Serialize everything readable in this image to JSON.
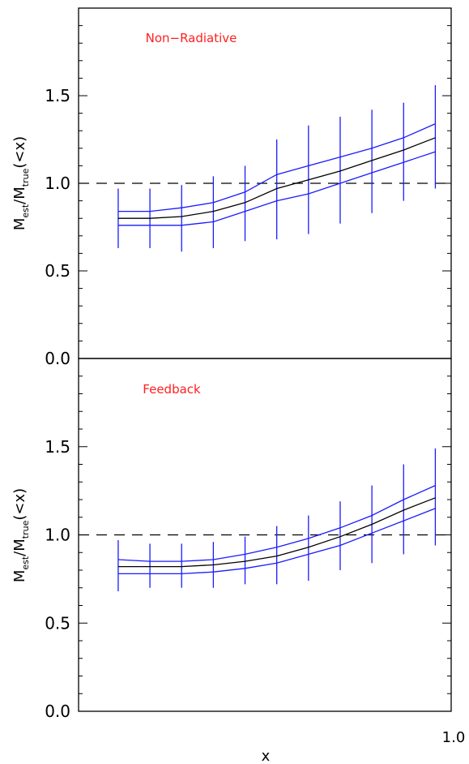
{
  "chart_data": [
    {
      "type": "line",
      "annotation": "Non−Radiative",
      "ylabel_main": "M",
      "ylabel_sub_num": "est",
      "ylabel_sub_den": "true",
      "ylabel_slash": "/",
      "ylabel_tail": "(<x)",
      "ylim": [
        0.0,
        2.0
      ],
      "yticks": [
        "0.0",
        "0.5",
        "1.0",
        "1.5"
      ],
      "reference_line": 1.0,
      "x": [
        0.18,
        0.26,
        0.34,
        0.42,
        0.5,
        0.58,
        0.66,
        0.74,
        0.82,
        0.9,
        0.98
      ],
      "median": [
        0.8,
        0.8,
        0.81,
        0.84,
        0.89,
        0.97,
        1.02,
        1.07,
        1.13,
        1.19,
        1.26
      ],
      "band_upper": [
        0.84,
        0.84,
        0.86,
        0.89,
        0.95,
        1.05,
        1.1,
        1.15,
        1.2,
        1.26,
        1.34
      ],
      "band_lower": [
        0.76,
        0.76,
        0.76,
        0.78,
        0.84,
        0.9,
        0.94,
        1.0,
        1.06,
        1.12,
        1.18
      ],
      "error_upper": [
        0.97,
        0.97,
        0.99,
        1.04,
        1.1,
        1.25,
        1.33,
        1.38,
        1.42,
        1.46,
        1.56
      ],
      "error_lower": [
        0.63,
        0.63,
        0.61,
        0.63,
        0.67,
        0.68,
        0.71,
        0.77,
        0.83,
        0.9,
        0.97
      ]
    },
    {
      "type": "line",
      "annotation": "Feedback",
      "ylabel_main": "M",
      "ylabel_sub_num": "est",
      "ylabel_sub_den": "true",
      "ylabel_slash": "/",
      "ylabel_tail": "(<x)",
      "xlabel": "x",
      "xtick_max": "1.0",
      "ylim": [
        0.0,
        2.0
      ],
      "yticks": [
        "0.0",
        "0.5",
        "1.0",
        "1.5"
      ],
      "reference_line": 1.0,
      "x": [
        0.18,
        0.26,
        0.34,
        0.42,
        0.5,
        0.58,
        0.66,
        0.74,
        0.82,
        0.9,
        0.98
      ],
      "median": [
        0.82,
        0.82,
        0.82,
        0.83,
        0.85,
        0.88,
        0.93,
        0.99,
        1.06,
        1.14,
        1.21
      ],
      "band_upper": [
        0.86,
        0.85,
        0.85,
        0.86,
        0.89,
        0.93,
        0.98,
        1.04,
        1.11,
        1.2,
        1.28
      ],
      "band_lower": [
        0.78,
        0.78,
        0.78,
        0.79,
        0.81,
        0.84,
        0.89,
        0.94,
        1.01,
        1.08,
        1.15
      ],
      "error_upper": [
        0.97,
        0.95,
        0.95,
        0.96,
        0.99,
        1.05,
        1.11,
        1.19,
        1.28,
        1.4,
        1.49
      ],
      "error_lower": [
        0.68,
        0.7,
        0.7,
        0.7,
        0.72,
        0.72,
        0.74,
        0.8,
        0.84,
        0.89,
        0.94
      ]
    }
  ],
  "colors": {
    "median": "#000000",
    "band": "#1a1aff",
    "error": "#1a1aff",
    "annotation": "#ff2020",
    "axis": "#000000",
    "reference": "#000000"
  }
}
